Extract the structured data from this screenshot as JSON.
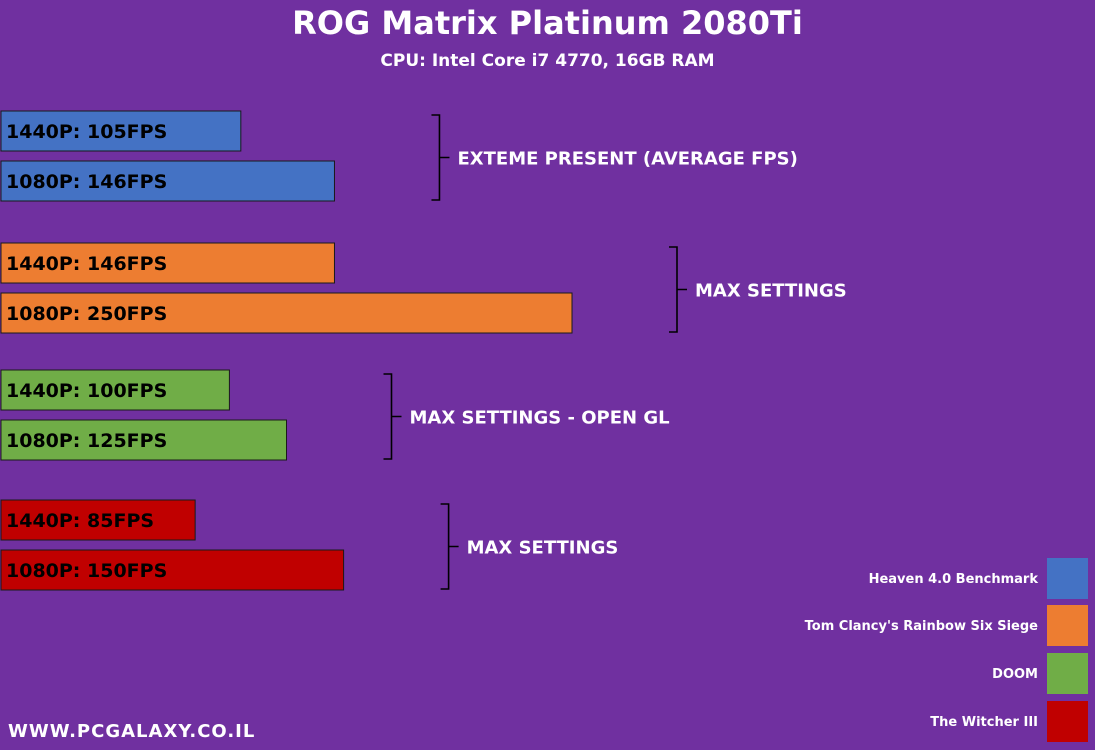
{
  "title": "ROG Matrix Platinum 2080Ti",
  "subtitle": "CPU: Intel Core i7 4770, 16GB RAM",
  "footer": "WWW.PCGALAXY.CO.IL",
  "colors": {
    "background": "#7030a0",
    "heaven": "#4472c4",
    "rainbow": "#ed7d31",
    "doom": "#70ad47",
    "witcher": "#c00000"
  },
  "chart_data": {
    "type": "bar",
    "orientation": "horizontal",
    "title": "ROG Matrix Platinum 2080Ti",
    "subtitle": "CPU: Intel Core i7 4770, 16GB RAM",
    "unit": "FPS",
    "legend_position": "bottom-right",
    "groups": [
      {
        "series": "Heaven 4.0 Benchmark",
        "setting": "EXTEME PRESENT (AVERAGE FPS)",
        "color": "#4472c4",
        "bars": [
          {
            "label": "1440P: 105FPS",
            "resolution": "1440P",
            "value": 105
          },
          {
            "label": "1080P: 146FPS",
            "resolution": "1080P",
            "value": 146
          }
        ]
      },
      {
        "series": "Tom Clancy's Rainbow Six Siege",
        "setting": "MAX SETTINGS",
        "color": "#ed7d31",
        "bars": [
          {
            "label": "1440P: 146FPS",
            "resolution": "1440P",
            "value": 146
          },
          {
            "label": "1080P: 250FPS",
            "resolution": "1080P",
            "value": 250
          }
        ]
      },
      {
        "series": "DOOM",
        "setting": "MAX SETTINGS - OPEN GL",
        "color": "#70ad47",
        "bars": [
          {
            "label": "1440P: 100FPS",
            "resolution": "1440P",
            "value": 100
          },
          {
            "label": "1080P: 125FPS",
            "resolution": "1080P",
            "value": 125
          }
        ]
      },
      {
        "series": "The Witcher III",
        "setting": "MAX SETTINGS",
        "color": "#c00000",
        "bars": [
          {
            "label": "1440P: 85FPS",
            "resolution": "1440P",
            "value": 85
          },
          {
            "label": "1080P: 150FPS",
            "resolution": "1080P",
            "value": 150
          }
        ]
      }
    ],
    "legend": [
      {
        "name": "Heaven 4.0 Benchmark",
        "color": "#4472c4"
      },
      {
        "name": "Tom Clancy's Rainbow Six Siege",
        "color": "#ed7d31"
      },
      {
        "name": "DOOM",
        "color": "#70ad47"
      },
      {
        "name": "The Witcher III",
        "color": "#c00000"
      }
    ]
  }
}
